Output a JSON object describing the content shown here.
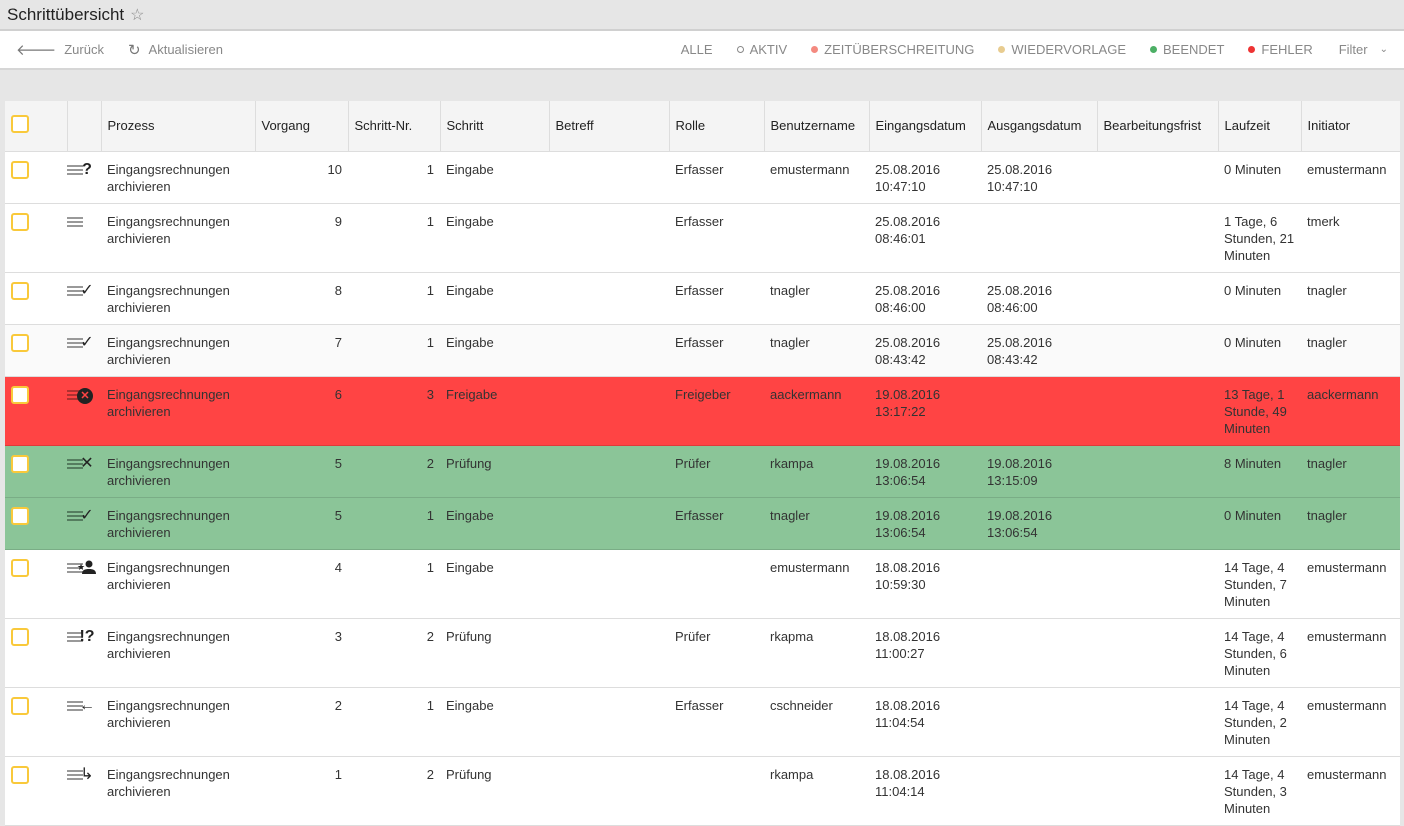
{
  "header": {
    "title": "Schrittübersicht"
  },
  "toolbar": {
    "back": "Zurück",
    "refresh": "Aktualisieren",
    "filters": [
      {
        "label": "ALLE",
        "color": ""
      },
      {
        "label": "AKTIV",
        "color": "ring"
      },
      {
        "label": "ZEITÜBERSCHREITUNG",
        "color": "#f48a80"
      },
      {
        "label": "WIEDERVORLAGE",
        "color": "#e8cc90"
      },
      {
        "label": "BEENDET",
        "color": "#4caf65"
      },
      {
        "label": "FEHLER",
        "color": "#ee3333"
      }
    ],
    "filter_dropdown": "Filter"
  },
  "table": {
    "columns": [
      "",
      "",
      "Prozess",
      "Vorgang",
      "Schritt-Nr.",
      "Schritt",
      "Betreff",
      "Rolle",
      "Benutzername",
      "Eingangsdatum",
      "Ausgangsdatum",
      "Bearbeitungsfrist",
      "Laufzeit",
      "Initiator"
    ],
    "rows": [
      {
        "status": "question",
        "style": "",
        "prozess": "Eingangsrechnungen archivieren",
        "vorgang": "10",
        "nr": "1",
        "schritt": "Eingabe",
        "betreff": "",
        "rolle": "Erfasser",
        "user": "emustermann",
        "ein": "25.08.2016 10:47:10",
        "aus": "25.08.2016 10:47:10",
        "frist": "",
        "laufzeit": "0 Minuten",
        "initiator": "emustermann"
      },
      {
        "status": "none",
        "style": "",
        "prozess": "Eingangsrechnungen archivieren",
        "vorgang": "9",
        "nr": "1",
        "schritt": "Eingabe",
        "betreff": "",
        "rolle": "Erfasser",
        "user": "",
        "ein": "25.08.2016 08:46:01",
        "aus": "",
        "frist": "",
        "laufzeit": "1 Tage, 6 Stunden, 21 Minuten",
        "initiator": "tmerk"
      },
      {
        "status": "check",
        "style": "",
        "prozess": "Eingangsrechnungen archivieren",
        "vorgang": "8",
        "nr": "1",
        "schritt": "Eingabe",
        "betreff": "",
        "rolle": "Erfasser",
        "user": "tnagler",
        "ein": "25.08.2016 08:46:00",
        "aus": "25.08.2016 08:46:00",
        "frist": "",
        "laufzeit": "0 Minuten",
        "initiator": "tnagler"
      },
      {
        "status": "check",
        "style": "alt",
        "prozess": "Eingangsrechnungen archivieren",
        "vorgang": "7",
        "nr": "1",
        "schritt": "Eingabe",
        "betreff": "",
        "rolle": "Erfasser",
        "user": "tnagler",
        "ein": "25.08.2016 08:43:42",
        "aus": "25.08.2016 08:43:42",
        "frist": "",
        "laufzeit": "0 Minuten",
        "initiator": "tnagler"
      },
      {
        "status": "error",
        "style": "err",
        "prozess": "Eingangsrechnungen archivieren",
        "vorgang": "6",
        "nr": "3",
        "schritt": "Freigabe",
        "betreff": "",
        "rolle": "Freigeber",
        "user": "aackermann",
        "ein": "19.08.2016 13:17:22",
        "aus": "",
        "frist": "",
        "laufzeit": "13 Tage, 1 Stunde, 49 Minuten",
        "initiator": "aackermann"
      },
      {
        "status": "cross",
        "style": "ok",
        "prozess": "Eingangsrechnungen archivieren",
        "vorgang": "5",
        "nr": "2",
        "schritt": "Prüfung",
        "betreff": "",
        "rolle": "Prüfer",
        "user": "rkampa",
        "ein": "19.08.2016 13:06:54",
        "aus": "19.08.2016 13:15:09",
        "frist": "",
        "laufzeit": "8 Minuten",
        "initiator": "tnagler"
      },
      {
        "status": "check",
        "style": "ok",
        "prozess": "Eingangsrechnungen archivieren",
        "vorgang": "5",
        "nr": "1",
        "schritt": "Eingabe",
        "betreff": "",
        "rolle": "Erfasser",
        "user": "tnagler",
        "ein": "19.08.2016 13:06:54",
        "aus": "19.08.2016 13:06:54",
        "frist": "",
        "laufzeit": "0 Minuten",
        "initiator": "tnagler"
      },
      {
        "status": "person-add",
        "style": "",
        "prozess": "Eingangsrechnungen archivieren",
        "vorgang": "4",
        "nr": "1",
        "schritt": "Eingabe",
        "betreff": "",
        "rolle": "",
        "user": "emustermann",
        "ein": "18.08.2016 10:59:30",
        "aus": "",
        "frist": "",
        "laufzeit": "14 Tage, 4 Stunden, 7 Minuten",
        "initiator": "emustermann"
      },
      {
        "status": "exclaim-question",
        "style": "",
        "prozess": "Eingangsrechnungen archivieren",
        "vorgang": "3",
        "nr": "2",
        "schritt": "Prüfung",
        "betreff": "",
        "rolle": "Prüfer",
        "user": "rkapma",
        "ein": "18.08.2016 11:00:27",
        "aus": "",
        "frist": "",
        "laufzeit": "14 Tage, 4 Stunden, 6 Minuten",
        "initiator": "emustermann"
      },
      {
        "status": "arrow-left",
        "style": "",
        "prozess": "Eingangsrechnungen archivieren",
        "vorgang": "2",
        "nr": "1",
        "schritt": "Eingabe",
        "betreff": "",
        "rolle": "Erfasser",
        "user": "cschneider",
        "ein": "18.08.2016 11:04:54",
        "aus": "",
        "frist": "",
        "laufzeit": "14 Tage, 4 Stunden, 2 Minuten",
        "initiator": "emustermann"
      },
      {
        "status": "forward-down",
        "style": "",
        "prozess": "Eingangsrechnungen archivieren",
        "vorgang": "1",
        "nr": "2",
        "schritt": "Prüfung",
        "betreff": "",
        "rolle": "",
        "user": "rkampa",
        "ein": "18.08.2016 11:04:14",
        "aus": "",
        "frist": "",
        "laufzeit": "14 Tage, 4 Stunden, 3 Minuten",
        "initiator": "emustermann"
      }
    ]
  }
}
